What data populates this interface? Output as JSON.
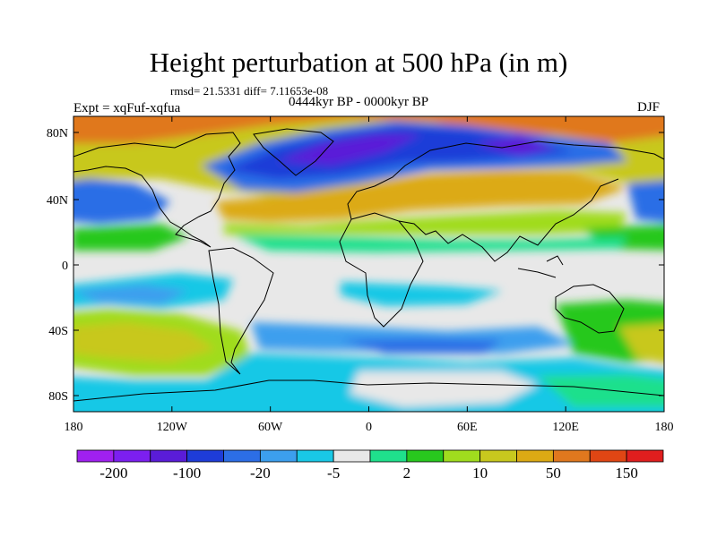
{
  "header": {
    "title": "Height perturbation at 500 hPa (in m)",
    "stats": "rmsd= 21.5331 diff= 7.11653e-08",
    "expt": "Expt = xqFuf-xqfua",
    "period": "0444kyr BP - 0000kyr BP",
    "season": "DJF"
  },
  "axes": {
    "lat_labels": [
      "80N",
      "40N",
      "0",
      "40S",
      "80S"
    ],
    "lon_labels": [
      "180",
      "120W",
      "60W",
      "0",
      "60E",
      "120E",
      "180"
    ]
  },
  "colorbar": {
    "colors": [
      "#a020f0",
      "#7c1ff0",
      "#5a1cd8",
      "#1e3cd8",
      "#2c6ee6",
      "#3c9fee",
      "#19c8e6",
      "#e8e8e8",
      "#1fe08c",
      "#28c81e",
      "#a0dc1e",
      "#c8c81e",
      "#dcaa14",
      "#e0781e",
      "#e04614",
      "#e01e1e"
    ],
    "labels": [
      "-200",
      "-100",
      "-20",
      "-5",
      "2",
      "10",
      "50",
      "150"
    ]
  },
  "colors": {
    "coast": "#000000",
    "background": "#ffffff"
  }
}
